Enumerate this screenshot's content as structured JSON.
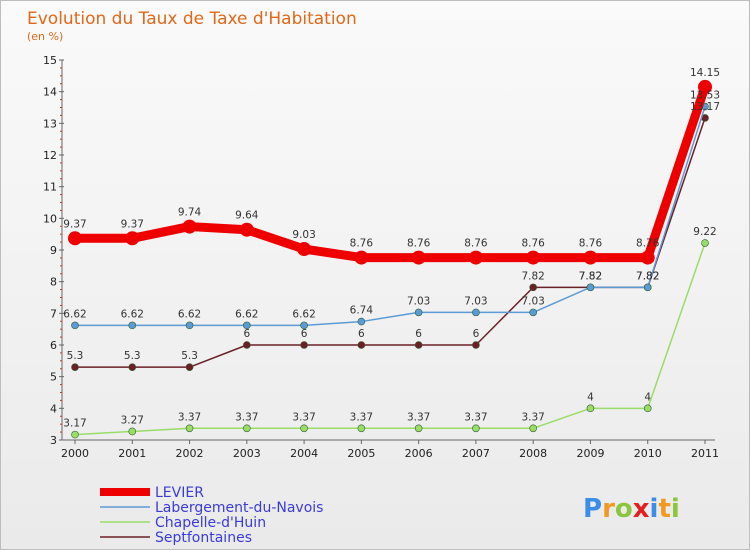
{
  "chart_data": {
    "type": "line",
    "title": "Evolution du Taux de Taxe d'Habitation",
    "subtitle": "(en %)",
    "categories": [
      "2000",
      "2001",
      "2002",
      "2003",
      "2004",
      "2005",
      "2006",
      "2007",
      "2008",
      "2009",
      "2010",
      "2011"
    ],
    "ylim": [
      3,
      15
    ],
    "yticks": [
      3,
      4,
      5,
      6,
      7,
      8,
      9,
      10,
      11,
      12,
      13,
      14,
      15
    ],
    "grid": false,
    "legend_position": "bottom-left",
    "series": [
      {
        "name": "LEVIER",
        "color": "#ee0000",
        "values": [
          9.37,
          9.37,
          9.74,
          9.64,
          9.03,
          8.76,
          8.76,
          8.76,
          8.76,
          8.76,
          8.76,
          14.15
        ],
        "labels": [
          "9.37",
          "9.37",
          "9.74",
          "9.64",
          "9.03",
          "8.76",
          "8.76",
          "8.76",
          "8.76",
          "8.76",
          "8.76",
          "14.15"
        ]
      },
      {
        "name": "Labergement-du-Navois",
        "color": "#5b9bd5",
        "values": [
          6.62,
          6.62,
          6.62,
          6.62,
          6.62,
          6.74,
          7.03,
          7.03,
          7.03,
          7.82,
          7.82,
          13.53
        ],
        "labels": [
          "6.62",
          "6.62",
          "6.62",
          "6.62",
          "6.62",
          "6.74",
          "7.03",
          "7.03",
          "7.03",
          "7.82",
          "7.82",
          "13.53"
        ]
      },
      {
        "name": "Chapelle-d'Huin",
        "color": "#99dd66",
        "values": [
          3.17,
          3.27,
          3.37,
          3.37,
          3.37,
          3.37,
          3.37,
          3.37,
          3.37,
          4,
          4,
          9.22
        ],
        "labels": [
          "3.17",
          "3.27",
          "3.37",
          "3.37",
          "3.37",
          "3.37",
          "3.37",
          "3.37",
          "3.37",
          "4",
          "4",
          "9.22"
        ]
      },
      {
        "name": "Septfontaines",
        "color": "#6b1f26",
        "values": [
          5.3,
          5.3,
          5.3,
          6,
          6,
          6,
          6,
          6,
          7.82,
          7.82,
          7.82,
          13.17
        ],
        "labels": [
          "5.3",
          "5.3",
          "5.3",
          "6",
          "6",
          "6",
          "6",
          "6",
          "7.82",
          "7.82",
          "7.82",
          "13.17"
        ]
      }
    ]
  },
  "logo": {
    "letters": [
      "P",
      "r",
      "o",
      "x",
      "i",
      "t",
      "i"
    ],
    "colors": [
      "#3a8ee6",
      "#f29a1f",
      "#8cc63f",
      "#e0201f",
      "#3a8ee6",
      "#f29a1f",
      "#8cc63f"
    ]
  }
}
